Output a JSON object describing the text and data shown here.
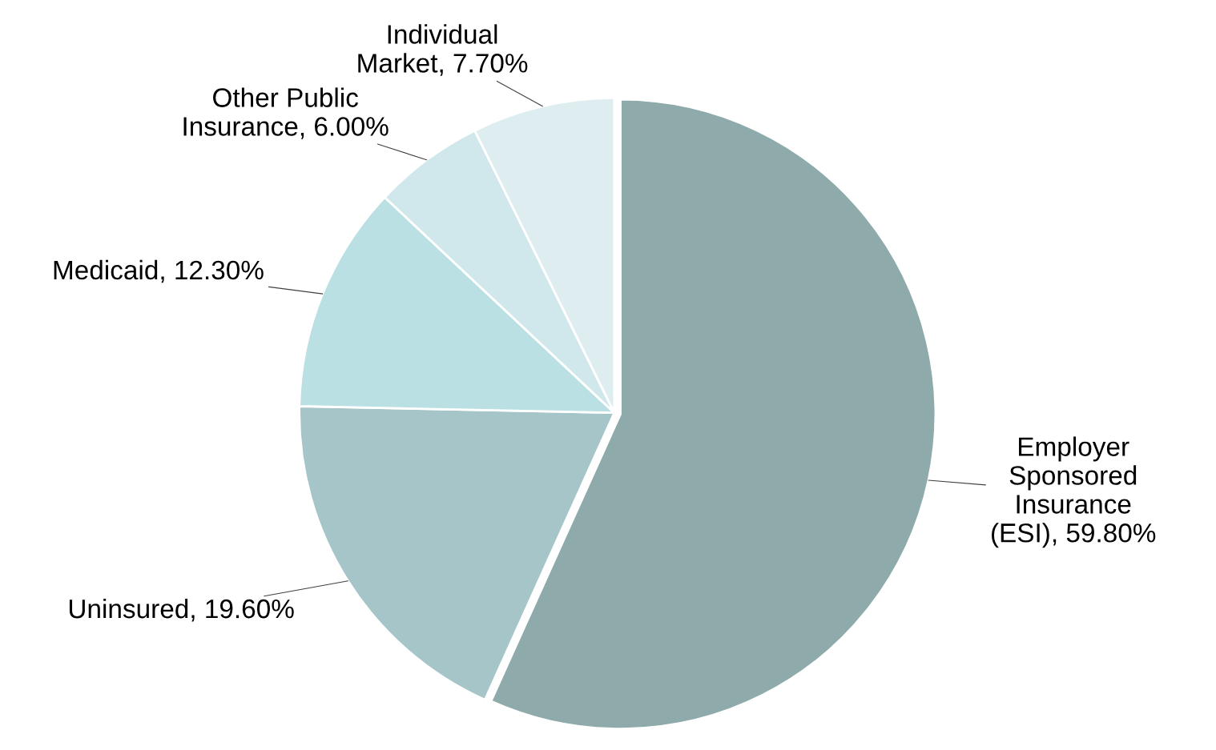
{
  "chart_data": {
    "type": "pie",
    "categories": [
      "Employer\nSponsored\nInsurance\n(ESI)",
      "Uninsured",
      "Medicaid",
      "Other Public\nInsurance",
      "Individual\nMarket"
    ],
    "values": [
      59.8,
      19.6,
      12.3,
      6.0,
      7.7
    ],
    "value_labels": [
      "59.80%",
      "19.60%",
      "12.30%",
      "6.00%",
      "7.70%"
    ],
    "colors": [
      "#8eaaab",
      "#a6c5c8",
      "#bbe0e3",
      "#d0e8eb",
      "#deeef0"
    ]
  }
}
